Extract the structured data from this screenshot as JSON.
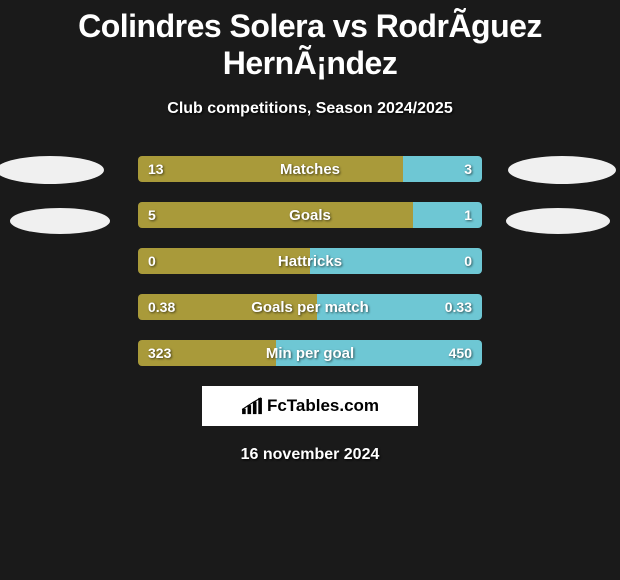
{
  "title": "Colindres Solera vs RodrÃ­guez HernÃ¡ndez",
  "subtitle": "Club competitions, Season 2024/2025",
  "date": "16 november 2024",
  "logo": "FcTables.com",
  "colors": {
    "bg": "#1a1a1a",
    "left_bar": "#a99a3a",
    "right_bar": "#6ec7d4",
    "oval": "#f0f0f0",
    "logo_bg": "#ffffff"
  },
  "stats": [
    {
      "label": "Matches",
      "left_val": "13",
      "right_val": "3",
      "left_pct": 77
    },
    {
      "label": "Goals",
      "left_val": "5",
      "right_val": "1",
      "left_pct": 80
    },
    {
      "label": "Hattricks",
      "left_val": "0",
      "right_val": "0",
      "left_pct": 50
    },
    {
      "label": "Goals per match",
      "left_val": "0.38",
      "right_val": "0.33",
      "left_pct": 52
    },
    {
      "label": "Min per goal",
      "left_val": "323",
      "right_val": "450",
      "left_pct": 40
    }
  ]
}
